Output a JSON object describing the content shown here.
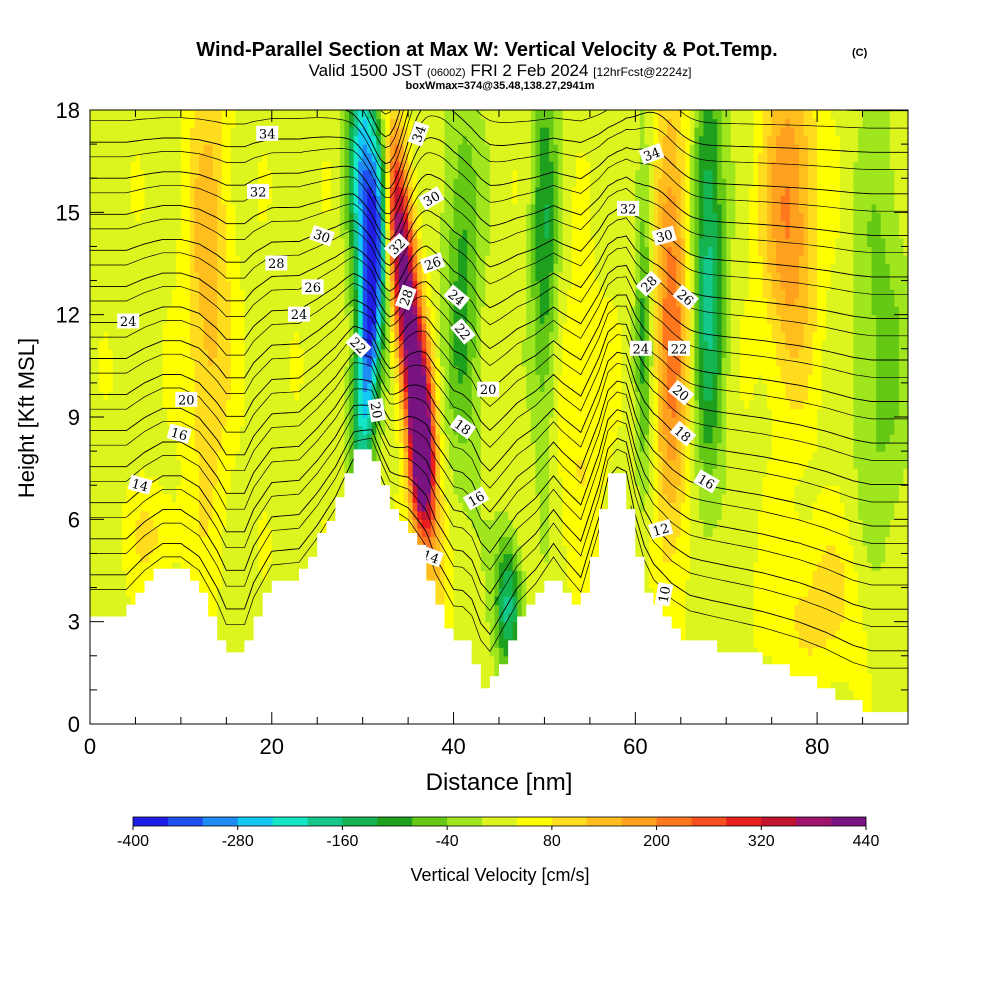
{
  "chart_data": {
    "type": "heatmap",
    "title": "Wind-Parallel Section at Max W: Vertical Velocity & Pot.Temp.",
    "copyright": "(C)",
    "subtitle_main": "Valid 1500 JST",
    "subtitle_utc": "(0600Z)",
    "subtitle_date": "FRI 2 Feb 2024",
    "subtitle_fcst": "[12hrFcst@2224z]",
    "subtitle2": "boxWmax=374@35.48,138.27,2941m",
    "xlabel": "Distance [nm]",
    "ylabel": "Height [Kft MSL]",
    "xlim": [
      0,
      90
    ],
    "ylim": [
      0,
      18
    ],
    "x_ticks": [
      0,
      20,
      40,
      60,
      80
    ],
    "y_ticks": [
      0,
      3,
      6,
      9,
      12,
      15,
      18
    ],
    "colorbar": {
      "label": "Vertical Velocity [cm/s]",
      "tick_labels": [
        "-400",
        "-280",
        "-160",
        "-40",
        "80",
        "200",
        "320",
        "440"
      ],
      "tick_values": [
        -400,
        -280,
        -160,
        -40,
        80,
        200,
        320,
        440
      ],
      "range": [
        -400,
        440
      ],
      "colors": [
        "#1e1ee6",
        "#1e50f0",
        "#1e8cf5",
        "#14c8f5",
        "#14e6c8",
        "#14c88c",
        "#14b450",
        "#1ea01e",
        "#64c814",
        "#a0e61e",
        "#dcf51e",
        "#ffff00",
        "#ffdc1e",
        "#ffbe1e",
        "#ffa01e",
        "#ff781e",
        "#f5501e",
        "#eb1e1e",
        "#c31432",
        "#a0146e",
        "#781482"
      ]
    },
    "terrain": [
      {
        "x": 0,
        "z": 3.3
      },
      {
        "x": 4,
        "z": 3.3
      },
      {
        "x": 6,
        "z": 4.0
      },
      {
        "x": 8,
        "z": 4.5
      },
      {
        "x": 10,
        "z": 4.5
      },
      {
        "x": 12,
        "z": 4.0
      },
      {
        "x": 14,
        "z": 2.8
      },
      {
        "x": 15,
        "z": 2.0
      },
      {
        "x": 17,
        "z": 2.0
      },
      {
        "x": 18,
        "z": 3.0
      },
      {
        "x": 20,
        "z": 4.2
      },
      {
        "x": 23,
        "z": 4.3
      },
      {
        "x": 25,
        "z": 5.2
      },
      {
        "x": 27,
        "z": 6.3
      },
      {
        "x": 29,
        "z": 7.8
      },
      {
        "x": 31,
        "z": 8.1
      },
      {
        "x": 32,
        "z": 7.3
      },
      {
        "x": 33,
        "z": 6.5
      },
      {
        "x": 35,
        "z": 5.9
      },
      {
        "x": 37,
        "z": 4.8
      },
      {
        "x": 38,
        "z": 3.8
      },
      {
        "x": 40,
        "z": 2.6
      },
      {
        "x": 41,
        "z": 2.6
      },
      {
        "x": 42,
        "z": 2.3
      },
      {
        "x": 43,
        "z": 1.4
      },
      {
        "x": 44,
        "z": 1.0
      },
      {
        "x": 45,
        "z": 1.6
      },
      {
        "x": 47,
        "z": 2.8
      },
      {
        "x": 49,
        "z": 3.5
      },
      {
        "x": 51,
        "z": 4.5
      },
      {
        "x": 52,
        "z": 4.0
      },
      {
        "x": 54,
        "z": 3.2
      },
      {
        "x": 56,
        "z": 5.5
      },
      {
        "x": 57,
        "z": 7.0
      },
      {
        "x": 58,
        "z": 7.4
      },
      {
        "x": 59,
        "z": 7.2
      },
      {
        "x": 60,
        "z": 5.5
      },
      {
        "x": 61,
        "z": 4.3
      },
      {
        "x": 62,
        "z": 3.6
      },
      {
        "x": 64,
        "z": 2.9
      },
      {
        "x": 66,
        "z": 2.5
      },
      {
        "x": 70,
        "z": 2.2
      },
      {
        "x": 74,
        "z": 1.9
      },
      {
        "x": 78,
        "z": 1.5
      },
      {
        "x": 81,
        "z": 1.1
      },
      {
        "x": 84,
        "z": 0.6
      },
      {
        "x": 86,
        "z": 0.4
      },
      {
        "x": 90,
        "z": 0.4
      }
    ],
    "w_features": [
      {
        "x": 31,
        "z": 12.5,
        "w": -400,
        "sx": 1.4,
        "sz": 5.5,
        "tilt": 0.08
      },
      {
        "x": 30,
        "z": 16.5,
        "w": -280,
        "sx": 1.6,
        "sz": 3.5,
        "tilt": 0.0
      },
      {
        "x": 35,
        "z": 12.0,
        "w": 440,
        "sx": 1.5,
        "sz": 6.5,
        "tilt": -0.12
      },
      {
        "x": 36.5,
        "z": 8.0,
        "w": 300,
        "sx": 1.3,
        "sz": 2.5,
        "tilt": 0.0
      },
      {
        "x": 13,
        "z": 13.0,
        "w": 120,
        "sx": 2.5,
        "sz": 7.0,
        "tilt": 0.0
      },
      {
        "x": 7,
        "z": 5.5,
        "w": 60,
        "sx": 3.0,
        "sz": 1.5,
        "tilt": 0.0
      },
      {
        "x": 41,
        "z": 13.0,
        "w": -120,
        "sx": 2.0,
        "sz": 6.0,
        "tilt": 0.0
      },
      {
        "x": 46,
        "z": 3.5,
        "w": -200,
        "sx": 1.5,
        "sz": 2.0,
        "tilt": 0.0
      },
      {
        "x": 50,
        "z": 14.0,
        "w": -140,
        "sx": 1.5,
        "sz": 6.0,
        "tilt": 0.0
      },
      {
        "x": 61,
        "z": 12.0,
        "w": -120,
        "sx": 1.0,
        "sz": 6.0,
        "tilt": 0.0
      },
      {
        "x": 64,
        "z": 12.0,
        "w": 200,
        "sx": 2.0,
        "sz": 7.0,
        "tilt": 0.0
      },
      {
        "x": 68,
        "z": 13.5,
        "w": -200,
        "sx": 1.8,
        "sz": 6.5,
        "tilt": 0.0
      },
      {
        "x": 77,
        "z": 15.0,
        "w": 180,
        "sx": 3.0,
        "sz": 5.0,
        "tilt": 0.0
      },
      {
        "x": 87,
        "z": 11.0,
        "w": -80,
        "sx": 3.0,
        "sz": 7.0,
        "tilt": 0.0
      },
      {
        "x": 80,
        "z": 3.5,
        "w": 70,
        "sx": 6.0,
        "sz": 2.5,
        "tilt": 0.0
      },
      {
        "x": 54,
        "z": 9.0,
        "w": 60,
        "sx": 3.0,
        "sz": 4.0,
        "tilt": 0.0
      }
    ],
    "theta_levels": [
      6,
      8,
      10,
      12,
      14,
      16,
      18,
      20,
      22,
      24,
      26,
      28,
      30,
      32,
      34,
      36
    ],
    "contour_labels": [
      {
        "text": "34",
        "x": 19.5,
        "z": 17.3,
        "angle": 0
      },
      {
        "text": "32",
        "x": 18.5,
        "z": 15.6,
        "angle": 0
      },
      {
        "text": "30",
        "x": 25.5,
        "z": 14.3,
        "angle": 20
      },
      {
        "text": "28",
        "x": 20.5,
        "z": 13.5,
        "angle": 0
      },
      {
        "text": "26",
        "x": 24.5,
        "z": 12.8,
        "angle": 0
      },
      {
        "text": "24",
        "x": 23,
        "z": 12.0,
        "angle": 0
      },
      {
        "text": "24",
        "x": 4.2,
        "z": 11.8,
        "angle": 0
      },
      {
        "text": "22",
        "x": 29.5,
        "z": 11.1,
        "angle": 45
      },
      {
        "text": "20",
        "x": 10.6,
        "z": 9.5,
        "angle": 0
      },
      {
        "text": "16",
        "x": 9.8,
        "z": 8.5,
        "angle": 15
      },
      {
        "text": "14",
        "x": 5.5,
        "z": 7.0,
        "angle": 15
      },
      {
        "text": "34",
        "x": 36.2,
        "z": 17.3,
        "angle": -70
      },
      {
        "text": "30",
        "x": 37.6,
        "z": 15.4,
        "angle": -30
      },
      {
        "text": "32",
        "x": 33.8,
        "z": 14.0,
        "angle": -45
      },
      {
        "text": "26",
        "x": 37.7,
        "z": 13.5,
        "angle": -20
      },
      {
        "text": "28",
        "x": 34.8,
        "z": 12.5,
        "angle": -70
      },
      {
        "text": "24",
        "x": 40.3,
        "z": 12.5,
        "angle": 40
      },
      {
        "text": "22",
        "x": 41,
        "z": 11.5,
        "angle": 50
      },
      {
        "text": "20",
        "x": 43.8,
        "z": 9.8,
        "angle": 0
      },
      {
        "text": "20",
        "x": 31.5,
        "z": 9.2,
        "angle": 80
      },
      {
        "text": "18",
        "x": 41,
        "z": 8.7,
        "angle": 35
      },
      {
        "text": "16",
        "x": 42.5,
        "z": 6.6,
        "angle": -30
      },
      {
        "text": "14",
        "x": 37.5,
        "z": 4.9,
        "angle": 20
      },
      {
        "text": "34",
        "x": 61.8,
        "z": 16.7,
        "angle": -20
      },
      {
        "text": "32",
        "x": 59.2,
        "z": 15.1,
        "angle": 0
      },
      {
        "text": "30",
        "x": 63.2,
        "z": 14.3,
        "angle": -15
      },
      {
        "text": "28",
        "x": 61.5,
        "z": 12.9,
        "angle": -45
      },
      {
        "text": "26",
        "x": 65.5,
        "z": 12.5,
        "angle": 40
      },
      {
        "text": "24",
        "x": 60.6,
        "z": 11.0,
        "angle": 0
      },
      {
        "text": "22",
        "x": 64.8,
        "z": 11.0,
        "angle": 0
      },
      {
        "text": "20",
        "x": 65,
        "z": 9.7,
        "angle": 40
      },
      {
        "text": "18",
        "x": 65.2,
        "z": 8.5,
        "angle": 40
      },
      {
        "text": "16",
        "x": 67.8,
        "z": 7.1,
        "angle": 30
      },
      {
        "text": "12",
        "x": 62.8,
        "z": 5.7,
        "angle": -15
      },
      {
        "text": "10",
        "x": 63.2,
        "z": 3.8,
        "angle": -80
      }
    ]
  }
}
